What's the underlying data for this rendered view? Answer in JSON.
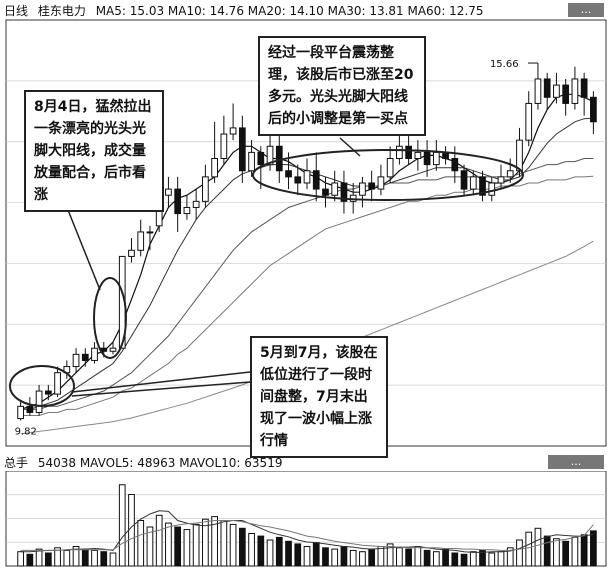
{
  "header": {
    "period": "日线",
    "stock": "桂东电力",
    "ma_values": "MA5: 15.03 MA10: 14.76 MA20: 14.10 MA30: 13.81 MA60: 12.75",
    "button": "..."
  },
  "volume_header": {
    "label": "总手",
    "values": "54038 MAVOL5: 48963 MAVOL10: 63519",
    "button": "..."
  },
  "price_labels": {
    "high": "15.66",
    "low": "9.82"
  },
  "annotations": [
    {
      "text": "8月4日，猛然拉出一条漂亮的光头光脚大阳线，成交量放量配合，后市看涨"
    },
    {
      "text": "经过一段平台震荡整理，该股后市已涨至20多元。光头光脚大阳线后的小调整是第一买点"
    },
    {
      "text": "5月到7月，该股在低位进行了一段时间盘整，7月末出现了一波小幅上涨行情"
    }
  ],
  "chart_data": {
    "type": "candlestick",
    "title": "桂东电力 日线",
    "ma_legend": {
      "MA5": 15.03,
      "MA10": 14.76,
      "MA20": 14.1,
      "MA30": 13.81,
      "MA60": 12.75
    },
    "ylim": [
      9.5,
      16.2
    ],
    "marked_high": 15.66,
    "marked_low": 9.82,
    "candles": [
      [
        9.85,
        10.05,
        10.15,
        9.82
      ],
      [
        10.05,
        9.95,
        10.2,
        9.9
      ],
      [
        9.95,
        10.3,
        10.4,
        9.9
      ],
      [
        10.3,
        10.25,
        10.4,
        10.15
      ],
      [
        10.25,
        10.6,
        10.7,
        10.2
      ],
      [
        10.6,
        10.7,
        10.8,
        10.5
      ],
      [
        10.7,
        10.9,
        11.0,
        10.6
      ],
      [
        10.9,
        10.8,
        11.0,
        10.7
      ],
      [
        10.8,
        11.0,
        11.1,
        10.75
      ],
      [
        11.0,
        10.95,
        11.1,
        10.85
      ],
      [
        10.95,
        11.0,
        11.1,
        10.9
      ],
      [
        11.0,
        12.5,
        12.5,
        11.0
      ],
      [
        12.5,
        12.6,
        12.8,
        12.4
      ],
      [
        12.6,
        12.9,
        13.1,
        12.5
      ],
      [
        12.9,
        12.9,
        13.0,
        12.6
      ],
      [
        13.0,
        13.5,
        13.9,
        12.9
      ],
      [
        13.5,
        13.6,
        13.8,
        13.3
      ],
      [
        13.6,
        13.2,
        13.8,
        12.9
      ],
      [
        13.2,
        13.3,
        13.5,
        13.1
      ],
      [
        13.3,
        13.4,
        13.6,
        13.1
      ],
      [
        13.4,
        13.8,
        14.0,
        13.3
      ],
      [
        13.8,
        14.1,
        14.7,
        13.7
      ],
      [
        14.1,
        14.5,
        14.8,
        14.0
      ],
      [
        14.5,
        14.6,
        15.0,
        14.4
      ],
      [
        14.6,
        13.9,
        14.8,
        13.7
      ],
      [
        13.9,
        14.2,
        14.4,
        13.8
      ],
      [
        14.2,
        14.0,
        14.3,
        13.6
      ],
      [
        14.0,
        14.3,
        14.5,
        13.9
      ],
      [
        14.3,
        13.9,
        14.6,
        13.7
      ],
      [
        13.9,
        13.8,
        14.2,
        13.6
      ],
      [
        13.8,
        13.7,
        14.0,
        13.5
      ],
      [
        13.7,
        13.9,
        14.1,
        13.6
      ],
      [
        13.9,
        13.6,
        14.2,
        13.4
      ],
      [
        13.6,
        13.5,
        13.8,
        13.3
      ],
      [
        13.5,
        13.7,
        13.9,
        13.4
      ],
      [
        13.7,
        13.4,
        13.9,
        13.2
      ],
      [
        13.4,
        13.5,
        13.7,
        13.2
      ],
      [
        13.5,
        13.7,
        13.8,
        13.3
      ],
      [
        13.7,
        13.6,
        13.9,
        13.4
      ],
      [
        13.6,
        13.8,
        14.0,
        13.5
      ],
      [
        13.8,
        14.1,
        14.3,
        13.7
      ],
      [
        14.1,
        14.3,
        14.6,
        14.0
      ],
      [
        14.3,
        14.1,
        14.7,
        14.0
      ],
      [
        14.1,
        14.2,
        14.4,
        13.9
      ],
      [
        14.2,
        14.0,
        14.4,
        13.8
      ],
      [
        14.0,
        14.2,
        14.4,
        13.9
      ],
      [
        14.2,
        14.1,
        14.3,
        14.0
      ],
      [
        14.1,
        13.9,
        14.3,
        13.7
      ],
      [
        13.9,
        13.6,
        14.0,
        13.5
      ],
      [
        13.6,
        13.8,
        13.9,
        13.5
      ],
      [
        13.8,
        13.5,
        13.9,
        13.4
      ],
      [
        13.5,
        13.7,
        13.8,
        13.4
      ],
      [
        13.7,
        13.8,
        14.0,
        13.6
      ],
      [
        13.8,
        13.9,
        14.1,
        13.7
      ],
      [
        13.9,
        14.4,
        14.6,
        13.8
      ],
      [
        14.4,
        15.0,
        15.2,
        14.3
      ],
      [
        15.0,
        15.4,
        15.66,
        14.9
      ],
      [
        15.4,
        15.1,
        15.5,
        14.9
      ],
      [
        15.1,
        15.3,
        15.5,
        15.0
      ],
      [
        15.3,
        15.0,
        15.4,
        14.8
      ],
      [
        15.0,
        15.4,
        15.6,
        14.9
      ],
      [
        15.4,
        15.1,
        15.5,
        14.8
      ],
      [
        15.1,
        14.7,
        15.2,
        14.5
      ]
    ],
    "ma_lines": {
      "MA5": [
        10.0,
        10.05,
        10.1,
        10.2,
        10.3,
        10.45,
        10.6,
        10.75,
        10.9,
        10.95,
        11.1,
        11.4,
        11.8,
        12.2,
        12.7,
        13.0,
        13.3,
        13.45,
        13.5,
        13.6,
        13.7,
        13.8,
        14.0,
        14.2,
        14.3,
        14.3,
        14.2,
        14.1,
        14.1,
        14.05,
        13.95,
        13.85,
        13.8,
        13.7,
        13.65,
        13.6,
        13.55,
        13.55,
        13.6,
        13.65,
        13.75,
        13.9,
        14.0,
        14.1,
        14.15,
        14.15,
        14.1,
        14.05,
        13.95,
        13.85,
        13.75,
        13.7,
        13.7,
        13.75,
        13.9,
        14.2,
        14.6,
        14.9,
        15.1,
        15.15,
        15.15,
        15.1,
        15.03
      ],
      "MA10": [
        10.0,
        10.0,
        10.05,
        10.1,
        10.15,
        10.25,
        10.35,
        10.45,
        10.55,
        10.65,
        10.75,
        10.95,
        11.2,
        11.45,
        11.7,
        12.0,
        12.3,
        12.6,
        12.85,
        13.1,
        13.3,
        13.45,
        13.6,
        13.75,
        13.85,
        13.9,
        13.95,
        14.0,
        14.0,
        14.0,
        13.95,
        13.9,
        13.85,
        13.8,
        13.75,
        13.7,
        13.65,
        13.65,
        13.65,
        13.65,
        13.7,
        13.75,
        13.8,
        13.85,
        13.9,
        13.95,
        13.95,
        13.95,
        13.95,
        13.9,
        13.85,
        13.8,
        13.75,
        13.75,
        13.8,
        13.95,
        14.15,
        14.35,
        14.5,
        14.6,
        14.7,
        14.75,
        14.76
      ],
      "MA20": [
        10.0,
        10.0,
        10.0,
        10.05,
        10.05,
        10.1,
        10.15,
        10.2,
        10.25,
        10.3,
        10.4,
        10.5,
        10.6,
        10.75,
        10.9,
        11.05,
        11.2,
        11.4,
        11.6,
        11.8,
        12.0,
        12.2,
        12.4,
        12.6,
        12.75,
        12.9,
        13.0,
        13.1,
        13.2,
        13.3,
        13.35,
        13.4,
        13.45,
        13.5,
        13.55,
        13.6,
        13.6,
        13.65,
        13.65,
        13.65,
        13.7,
        13.7,
        13.7,
        13.75,
        13.75,
        13.75,
        13.8,
        13.8,
        13.8,
        13.8,
        13.8,
        13.8,
        13.8,
        13.8,
        13.85,
        13.9,
        13.95,
        14.0,
        14.0,
        14.05,
        14.05,
        14.1,
        14.1
      ],
      "MA30": [
        9.9,
        9.9,
        9.9,
        9.95,
        9.95,
        10.0,
        10.0,
        10.05,
        10.1,
        10.15,
        10.2,
        10.3,
        10.35,
        10.45,
        10.55,
        10.65,
        10.75,
        10.9,
        11.0,
        11.15,
        11.3,
        11.45,
        11.6,
        11.75,
        11.9,
        12.05,
        12.2,
        12.35,
        12.45,
        12.55,
        12.65,
        12.75,
        12.85,
        12.95,
        13.0,
        13.05,
        13.1,
        13.15,
        13.2,
        13.25,
        13.3,
        13.35,
        13.4,
        13.4,
        13.45,
        13.5,
        13.5,
        13.55,
        13.55,
        13.6,
        13.6,
        13.6,
        13.65,
        13.65,
        13.65,
        13.7,
        13.7,
        13.75,
        13.75,
        13.75,
        13.8,
        13.8,
        13.81
      ],
      "MA60": [
        9.6,
        9.62,
        9.64,
        9.66,
        9.68,
        9.7,
        9.72,
        9.74,
        9.76,
        9.78,
        9.8,
        9.83,
        9.86,
        9.9,
        9.94,
        9.98,
        10.02,
        10.06,
        10.1,
        10.15,
        10.2,
        10.25,
        10.3,
        10.35,
        10.4,
        10.46,
        10.52,
        10.58,
        10.64,
        10.7,
        10.76,
        10.82,
        10.88,
        10.94,
        11.0,
        11.06,
        11.12,
        11.18,
        11.24,
        11.3,
        11.36,
        11.42,
        11.48,
        11.54,
        11.6,
        11.66,
        11.72,
        11.78,
        11.84,
        11.9,
        11.96,
        12.02,
        12.08,
        12.14,
        12.2,
        12.26,
        12.32,
        12.38,
        12.44,
        12.5,
        12.58,
        12.66,
        12.75
      ]
    },
    "volume": {
      "ylim": [
        0,
        140000
      ],
      "values": [
        22000,
        18000,
        26000,
        20000,
        28000,
        24000,
        30000,
        26000,
        24000,
        22000,
        20000,
        125000,
        110000,
        70000,
        60000,
        78000,
        66000,
        60000,
        56000,
        64000,
        72000,
        76000,
        70000,
        64000,
        58000,
        50000,
        46000,
        40000,
        44000,
        38000,
        34000,
        30000,
        36000,
        28000,
        26000,
        30000,
        24000,
        22000,
        26000,
        30000,
        34000,
        28000,
        26000,
        30000,
        24000,
        22000,
        26000,
        20000,
        18000,
        22000,
        24000,
        20000,
        22000,
        28000,
        40000,
        52000,
        58000,
        46000,
        42000,
        38000,
        44000,
        48000,
        54038
      ],
      "mavol5": [
        22000,
        22000,
        23000,
        24000,
        24000,
        25000,
        26000,
        26000,
        27000,
        26000,
        24000,
        44000,
        60000,
        72000,
        80000,
        85000,
        84000,
        70000,
        66000,
        63000,
        62000,
        64000,
        68000,
        70000,
        70000,
        64000,
        58000,
        52000,
        48000,
        45000,
        40000,
        37000,
        36000,
        34000,
        32000,
        30000,
        29000,
        27000,
        26000,
        27000,
        28000,
        29000,
        29000,
        30000,
        28000,
        26000,
        25000,
        24000,
        22000,
        21000,
        21000,
        22000,
        22000,
        23000,
        27000,
        33000,
        40000,
        45000,
        48000,
        47000,
        46000,
        46000,
        48963
      ],
      "mavol10": [
        24000,
        24000,
        24000,
        24000,
        24000,
        25000,
        25000,
        25000,
        25000,
        25000,
        25000,
        35000,
        42000,
        48000,
        52000,
        55000,
        60000,
        63000,
        65000,
        66000,
        68000,
        70000,
        70000,
        70000,
        68000,
        65000,
        62000,
        60000,
        57000,
        54000,
        50000,
        46000,
        44000,
        41000,
        38000,
        36000,
        34000,
        32000,
        31000,
        30000,
        30000,
        29000,
        28000,
        28000,
        28000,
        28000,
        27000,
        27000,
        26000,
        26000,
        25000,
        25000,
        24000,
        24000,
        26000,
        28000,
        32000,
        36000,
        39000,
        41000,
        44000,
        47000,
        63519
      ]
    }
  }
}
